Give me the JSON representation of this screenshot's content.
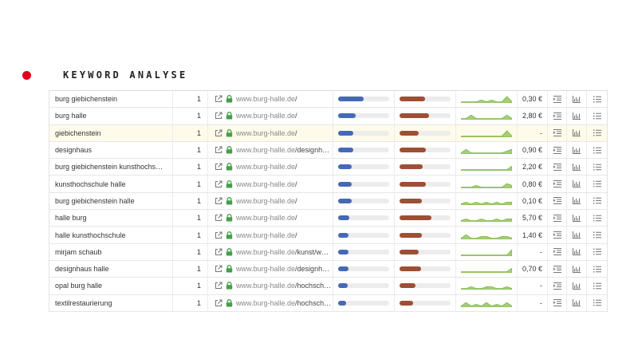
{
  "header": {
    "title": "KEYWORD ANALYSE"
  },
  "colors": {
    "bullet": "#e3001b",
    "bar_blue": "#4669b7",
    "bar_brown": "#9c4f35",
    "sparkline": "#7cb342",
    "lock": "#43a047",
    "highlight": "#fffbea"
  },
  "icons": {
    "external": "external-link-icon",
    "lock": "lock-icon",
    "action1": "indent-icon",
    "action2": "bar-chart-icon",
    "action3": "list-icon"
  },
  "rows": [
    {
      "keyword": "burg giebichenstein",
      "position": "1",
      "domain": "www.burg-halle.de",
      "path": "/",
      "bar1": 0.5,
      "bar2": 0.5,
      "cpc": "0,30 €",
      "spark": [
        3,
        3,
        3,
        3,
        2,
        3,
        2,
        3,
        3,
        0,
        3
      ],
      "highlight": false
    },
    {
      "keyword": "burg halle",
      "position": "1",
      "domain": "www.burg-halle.de",
      "path": "/",
      "bar1": 0.35,
      "bar2": 0.58,
      "cpc": "2,80 €",
      "spark": [
        3,
        3,
        1,
        3,
        3,
        3,
        3,
        3,
        3,
        1,
        3
      ],
      "highlight": false
    },
    {
      "keyword": "giebichenstein",
      "position": "1",
      "domain": "www.burg-halle.de",
      "path": "/",
      "bar1": 0.3,
      "bar2": 0.38,
      "cpc": "-",
      "spark": [
        3,
        3,
        3,
        3,
        3,
        3,
        3,
        3,
        3,
        0,
        3
      ],
      "highlight": true
    },
    {
      "keyword": "designhaus",
      "position": "1",
      "domain": "www.burg-halle.de",
      "path": "/designh…",
      "bar1": 0.3,
      "bar2": 0.52,
      "cpc": "0,90 €",
      "spark": [
        3,
        1,
        3,
        3,
        3,
        3,
        3,
        3,
        3,
        2,
        1
      ],
      "highlight": false
    },
    {
      "keyword": "burg giebichenstein kunsthochs…",
      "position": "1",
      "domain": "www.burg-halle.de",
      "path": "/",
      "bar1": 0.27,
      "bar2": 0.46,
      "cpc": "2,20 €",
      "spark": [
        3,
        3,
        3,
        3,
        3,
        3,
        3,
        3,
        3,
        3,
        1
      ],
      "highlight": false
    },
    {
      "keyword": "kunsthochschule halle",
      "position": "1",
      "domain": "www.burg-halle.de",
      "path": "/",
      "bar1": 0.27,
      "bar2": 0.52,
      "cpc": "0,80 €",
      "spark": [
        3,
        3,
        3,
        2,
        3,
        3,
        3,
        3,
        3,
        1,
        2
      ],
      "highlight": false
    },
    {
      "keyword": "burg giebichenstein halle",
      "position": "1",
      "domain": "www.burg-halle.de",
      "path": "/",
      "bar1": 0.26,
      "bar2": 0.44,
      "cpc": "0,10 €",
      "spark": [
        3,
        2,
        3,
        2,
        3,
        2,
        3,
        2,
        3,
        2,
        2
      ],
      "highlight": false
    },
    {
      "keyword": "halle burg",
      "position": "1",
      "domain": "www.burg-halle.de",
      "path": "/",
      "bar1": 0.22,
      "bar2": 0.62,
      "cpc": "5,70 €",
      "spark": [
        3,
        2,
        3,
        3,
        2,
        3,
        3,
        2,
        3,
        2,
        2
      ],
      "highlight": false
    },
    {
      "keyword": "halle kunsthochschule",
      "position": "1",
      "domain": "www.burg-halle.de",
      "path": "/",
      "bar1": 0.21,
      "bar2": 0.43,
      "cpc": "1,40 €",
      "spark": [
        3,
        1,
        3,
        3,
        2,
        2,
        3,
        3,
        2,
        2,
        3
      ],
      "highlight": false
    },
    {
      "keyword": "mirjam schaub",
      "position": "1",
      "domain": "www.burg-halle.de",
      "path": "/kunst/w…",
      "bar1": 0.21,
      "bar2": 0.38,
      "cpc": "-",
      "spark": [
        3,
        3,
        3,
        3,
        3,
        3,
        3,
        3,
        3,
        3,
        0
      ],
      "highlight": false
    },
    {
      "keyword": "designhaus halle",
      "position": "1",
      "domain": "www.burg-halle.de",
      "path": "/designh…",
      "bar1": 0.21,
      "bar2": 0.42,
      "cpc": "0,70 €",
      "spark": [
        3,
        3,
        3,
        3,
        3,
        3,
        3,
        3,
        3,
        3,
        1
      ],
      "highlight": false
    },
    {
      "keyword": "opal burg halle",
      "position": "1",
      "domain": "www.burg-halle.de",
      "path": "/hochsch…",
      "bar1": 0.19,
      "bar2": 0.32,
      "cpc": "-",
      "spark": [
        3,
        3,
        2,
        3,
        3,
        2,
        2,
        3,
        3,
        2,
        3
      ],
      "highlight": false
    },
    {
      "keyword": "textilrestaurierung",
      "position": "1",
      "domain": "www.burg-halle.de",
      "path": "/hochsch…",
      "bar1": 0.15,
      "bar2": 0.26,
      "cpc": "-",
      "spark": [
        3,
        1,
        3,
        2,
        3,
        1,
        3,
        2,
        3,
        1,
        3
      ],
      "highlight": false
    }
  ]
}
